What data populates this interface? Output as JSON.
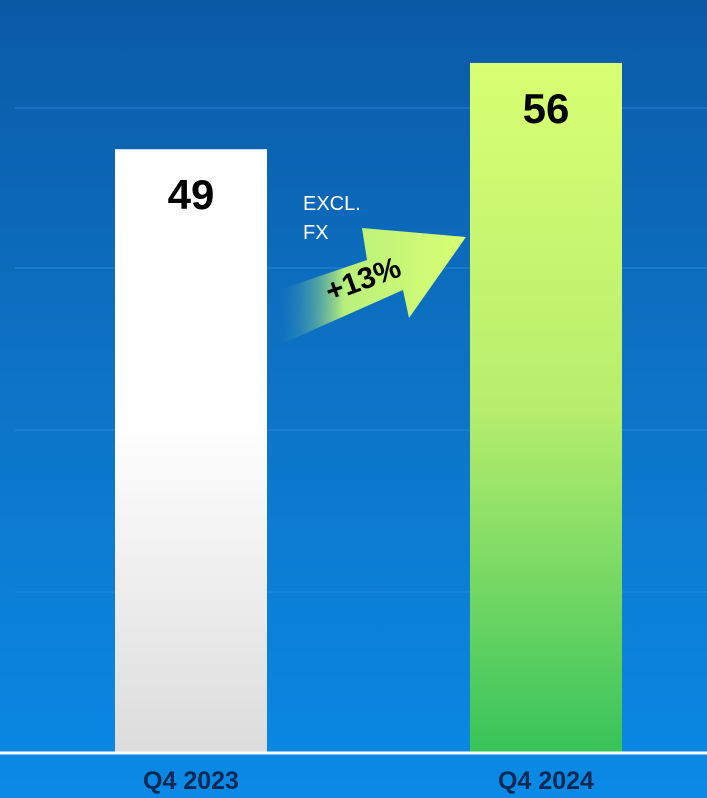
{
  "chart_data": {
    "type": "bar",
    "categories": [
      "Q4 2023",
      "Q4 2024"
    ],
    "values": [
      49,
      56
    ],
    "ylim": [
      0,
      59
    ],
    "grid": true,
    "annotations": {
      "note": "EXCL.\nFX",
      "growth": "+13%"
    }
  },
  "colors": {
    "background_top": "#0a5aa6",
    "background_bottom": "#0a8ae6",
    "bar_2023_top": "#ffffff",
    "bar_2023_bottom": "#dcdcdc",
    "bar_2024_top": "#d9ff73",
    "bar_2024_bottom": "#36c35a",
    "category_label": "#0a2a55"
  }
}
